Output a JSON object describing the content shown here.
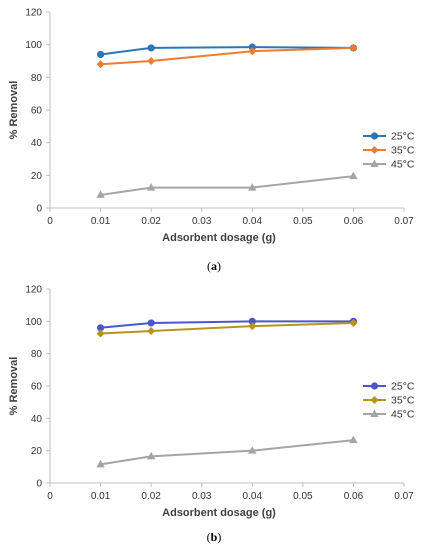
{
  "chart_data": [
    {
      "type": "line",
      "caption_letter": "a",
      "xlabel": "Adsorbent dosage (g)",
      "ylabel": "% Removal",
      "x": [
        0.01,
        0.02,
        0.04,
        0.06
      ],
      "xlim": [
        0,
        0.07
      ],
      "ylim": [
        0,
        120
      ],
      "xticks": [
        "0",
        "0.01",
        "0.02",
        "0.03",
        "0.04",
        "0.05",
        "0.06",
        "0.07"
      ],
      "yticks": [
        "0",
        "20",
        "40",
        "60",
        "80",
        "100",
        "120"
      ],
      "grid": false,
      "legend_position": "right",
      "series": [
        {
          "name": "25°C",
          "values": [
            94,
            98,
            98.5,
            98
          ],
          "color": "#2e75b6",
          "marker": "circle"
        },
        {
          "name": "35°C",
          "values": [
            88,
            90,
            96,
            98
          ],
          "color": "#ed7d31",
          "marker": "diamond"
        },
        {
          "name": "45°C",
          "values": [
            8,
            12.5,
            12.5,
            19.5
          ],
          "color": "#a5a5a5",
          "marker": "triangle"
        }
      ]
    },
    {
      "type": "line",
      "caption_letter": "b",
      "xlabel": "Adsorbent dosage (g)",
      "ylabel": "% Removal",
      "x": [
        0.01,
        0.02,
        0.04,
        0.06
      ],
      "xlim": [
        0,
        0.07
      ],
      "ylim": [
        0,
        120
      ],
      "xticks": [
        "0",
        "0.01",
        "0.02",
        "0.03",
        "0.04",
        "0.05",
        "0.06",
        "0.07"
      ],
      "yticks": [
        "0",
        "20",
        "40",
        "60",
        "80",
        "100",
        "120"
      ],
      "grid": false,
      "legend_position": "right",
      "series": [
        {
          "name": "25°C",
          "values": [
            96,
            99,
            100,
            100
          ],
          "color": "#4a57c8",
          "marker": "circle"
        },
        {
          "name": "35°C",
          "values": [
            92.5,
            94,
            97,
            99
          ],
          "color": "#b8941c",
          "marker": "diamond"
        },
        {
          "name": "45°C",
          "values": [
            11.5,
            16.5,
            20,
            26.5
          ],
          "color": "#a5a5a5",
          "marker": "triangle"
        }
      ]
    }
  ]
}
